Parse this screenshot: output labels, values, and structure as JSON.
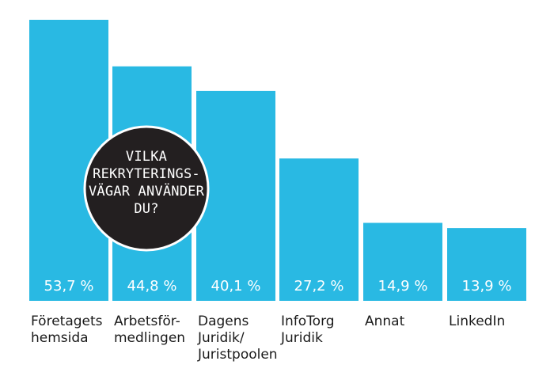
{
  "chart_data": {
    "type": "bar",
    "title": "",
    "xlabel": "",
    "ylabel": "",
    "ylim": [
      0,
      53.7
    ],
    "grid": false,
    "legend": "none",
    "categories": [
      [
        "Företagets",
        "hemsida"
      ],
      [
        "Arbetsför-",
        "medlingen"
      ],
      [
        "Dagens",
        "Juridik/",
        "Juristpoolen"
      ],
      [
        "InfoTorg",
        "Juridik"
      ],
      [
        "Annat"
      ],
      [
        "LinkedIn"
      ]
    ],
    "values": [
      53.7,
      44.8,
      40.1,
      27.2,
      14.9,
      13.9
    ],
    "value_labels": [
      "53,7 %",
      "44,8 %",
      "40,1 %",
      "27,2 %",
      "14,9 %",
      "13,9 %"
    ],
    "bar_color": "#29b9e3",
    "annotation": {
      "lines": [
        "VILKA",
        "REKRYTERINGS-",
        "VÄGAR ANVÄNDER",
        "DU?"
      ],
      "background": "#231f20",
      "border": "#ffffff",
      "text_color": "#ffffff"
    }
  }
}
